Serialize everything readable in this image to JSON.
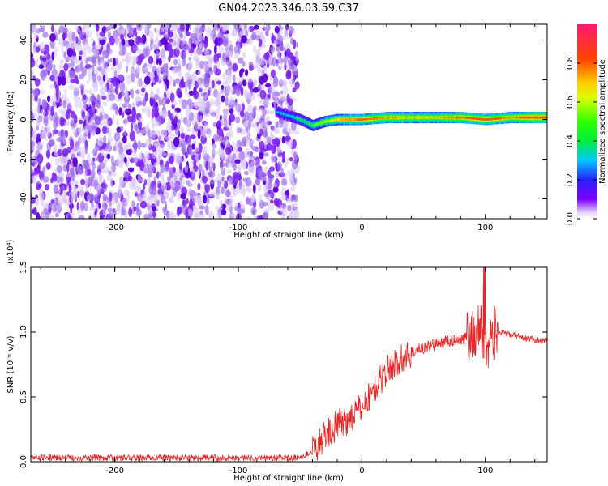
{
  "figure_title": "GN04.2023.346.03.59.C37",
  "chart_data": [
    {
      "type": "heatmap",
      "xlabel": "Height of straight line (km)",
      "ylabel": "Frequency (Hz)",
      "xlim": [
        -268,
        150
      ],
      "ylim": [
        -50,
        48
      ],
      "x_tick_labels": [
        "-200",
        "-100",
        "0",
        "100"
      ],
      "x_tick_values": [
        -200,
        -100,
        0,
        100
      ],
      "y_tick_labels": [
        "-40",
        "-20",
        "0",
        "20",
        "40"
      ],
      "y_tick_values": [
        -40,
        -20,
        0,
        20,
        40
      ],
      "noise_region_x": [
        -268,
        -55
      ],
      "ridge": [
        {
          "x": -70,
          "y": 4,
          "amp": 0.3
        },
        {
          "x": -60,
          "y": 2,
          "amp": 0.3
        },
        {
          "x": -50,
          "y": 0,
          "amp": 0.4
        },
        {
          "x": -40,
          "y": -3,
          "amp": 0.5
        },
        {
          "x": -30,
          "y": -1,
          "amp": 0.6
        },
        {
          "x": -20,
          "y": 0,
          "amp": 0.7
        },
        {
          "x": -10,
          "y": 0,
          "amp": 0.75
        },
        {
          "x": 0,
          "y": 0,
          "amp": 0.8
        },
        {
          "x": 20,
          "y": 1,
          "amp": 0.75
        },
        {
          "x": 40,
          "y": 1,
          "amp": 0.7
        },
        {
          "x": 60,
          "y": 1,
          "amp": 0.7
        },
        {
          "x": 80,
          "y": 1,
          "amp": 0.8
        },
        {
          "x": 100,
          "y": 0,
          "amp": 0.85
        },
        {
          "x": 120,
          "y": 1,
          "amp": 0.75
        },
        {
          "x": 140,
          "y": 1,
          "amp": 0.9
        },
        {
          "x": 150,
          "y": 1,
          "amp": 0.9
        }
      ]
    },
    {
      "type": "line",
      "xlabel": "Height of straight line (km)",
      "ylabel": "SNR (10 * v/v)",
      "y_multiplier": "(x10⁴)",
      "xlim": [
        -268,
        150
      ],
      "ylim": [
        0,
        1.5
      ],
      "x_tick_labels": [
        "-200",
        "-100",
        "0",
        "100"
      ],
      "x_tick_values": [
        -200,
        -100,
        0,
        100
      ],
      "y_tick_labels": [
        "0.0",
        "0.5",
        "1.0",
        "1.5"
      ],
      "y_tick_values": [
        0,
        0.5,
        1.0,
        1.5
      ],
      "series": [
        {
          "color": "#ee2222",
          "x": [
            -268,
            -200,
            -100,
            -50,
            -40,
            -30,
            -20,
            -10,
            0,
            10,
            20,
            30,
            40,
            50,
            60,
            70,
            80,
            90,
            95,
            100,
            105,
            110,
            120,
            130,
            140,
            150
          ],
          "values": [
            0.03,
            0.03,
            0.03,
            0.03,
            0.08,
            0.2,
            0.28,
            0.33,
            0.42,
            0.56,
            0.7,
            0.78,
            0.84,
            0.88,
            0.91,
            0.93,
            0.95,
            0.97,
            1.05,
            0.9,
            0.97,
            1.0,
            0.98,
            0.96,
            0.94,
            0.93
          ]
        }
      ]
    }
  ],
  "colorbar": {
    "label": "Normalized spectral amplitude",
    "range": [
      0,
      1
    ],
    "tick_labels": [
      "0.0",
      "0.2",
      "0.4",
      "0.6",
      "0.8"
    ],
    "tick_values": [
      0,
      0.2,
      0.4,
      0.6,
      0.8
    ]
  }
}
